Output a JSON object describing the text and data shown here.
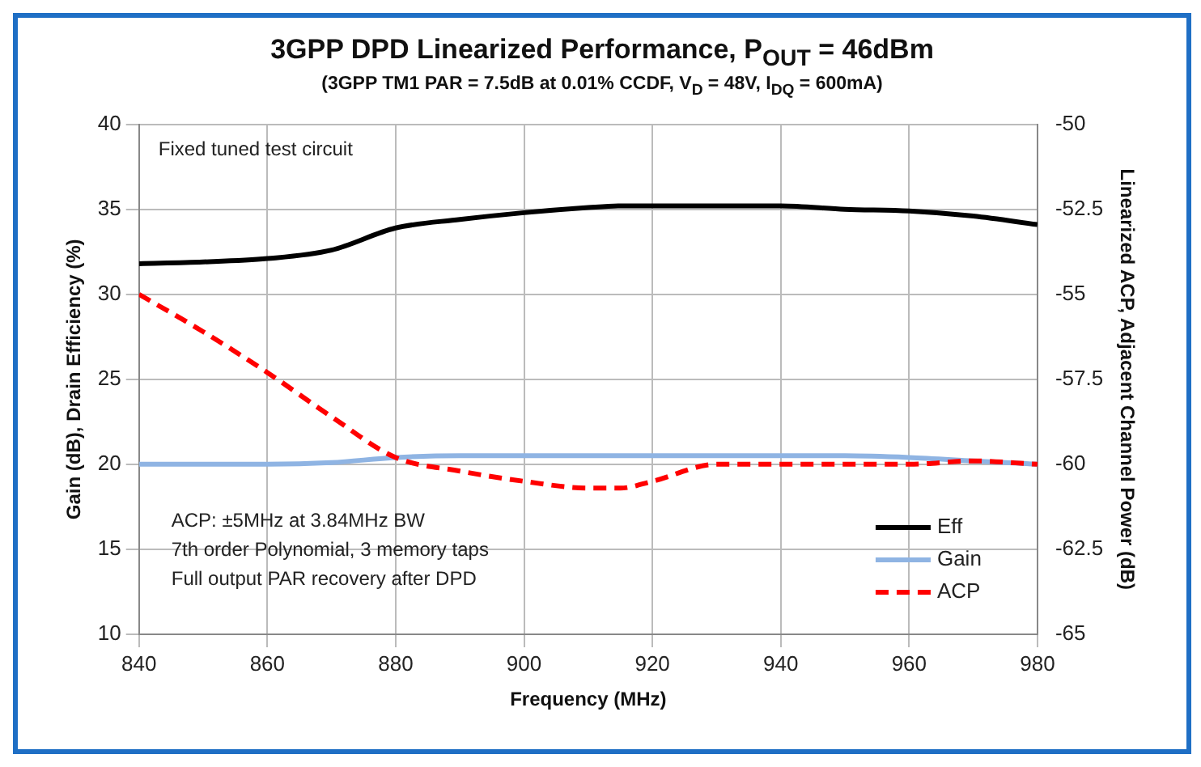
{
  "chart_data": {
    "type": "line",
    "title": "3GPP DPD Linearized Performance, P$_{OUT}$ = 46dBm",
    "subtitle": "(3GPP TM1 PAR = 7.5dB at 0.01% CCDF, V$_{D}$ = 48V, I$_{DQ}$ = 600mA)",
    "xlabel": "Frequency (MHz)",
    "ylabel": "Gain (dB), Drain Efficiency (%)",
    "y2label": "Linearized ACP, Adjacent Channel Power (dB)",
    "x": [
      840,
      850,
      860,
      870,
      880,
      890,
      900,
      910,
      915,
      920,
      930,
      940,
      950,
      960,
      970,
      980
    ],
    "series": [
      {
        "name": "Eff",
        "color": "#000000",
        "line_style": "solid",
        "values": [
          31.8,
          31.9,
          32.1,
          32.6,
          33.9,
          34.4,
          34.8,
          35.1,
          35.2,
          35.2,
          35.2,
          35.2,
          35.0,
          34.9,
          34.6,
          34.1
        ]
      },
      {
        "name": "Gain",
        "color": "#8fb4e3",
        "line_style": "solid",
        "values": [
          20.0,
          20.0,
          20.0,
          20.1,
          20.4,
          20.5,
          20.5,
          20.5,
          20.5,
          20.5,
          20.5,
          20.5,
          20.5,
          20.4,
          20.2,
          20.0
        ]
      },
      {
        "name": "ACP",
        "color": "#ff0000",
        "line_style": "dashed",
        "axis": "y2",
        "values": [
          -55.0,
          -56.1,
          -57.3,
          -58.6,
          -59.8,
          -60.2,
          -60.5,
          -60.7,
          -60.7,
          -60.5,
          -60.0,
          -60.0,
          -60.0,
          -60.0,
          -59.9,
          -60.0
        ]
      }
    ],
    "xlim": [
      840,
      980
    ],
    "xticks": [
      840,
      860,
      880,
      900,
      920,
      940,
      960,
      980
    ],
    "ylim": [
      10,
      40
    ],
    "yticks": [
      10,
      15,
      20,
      25,
      30,
      35,
      40
    ],
    "y2lim": [
      -65,
      -50
    ],
    "y2ticks": [
      -65,
      -62.5,
      -60,
      -57.5,
      -55,
      -52.5,
      -50
    ],
    "grid": true,
    "legend": "bottom right",
    "marker": "none",
    "annotations": [
      "Fixed tuned test circuit",
      "ACP: ±5MHz at 3.84MHz BW",
      "7th order Polynomial, 3 memory taps",
      "Full output PAR recovery after DPD"
    ]
  }
}
